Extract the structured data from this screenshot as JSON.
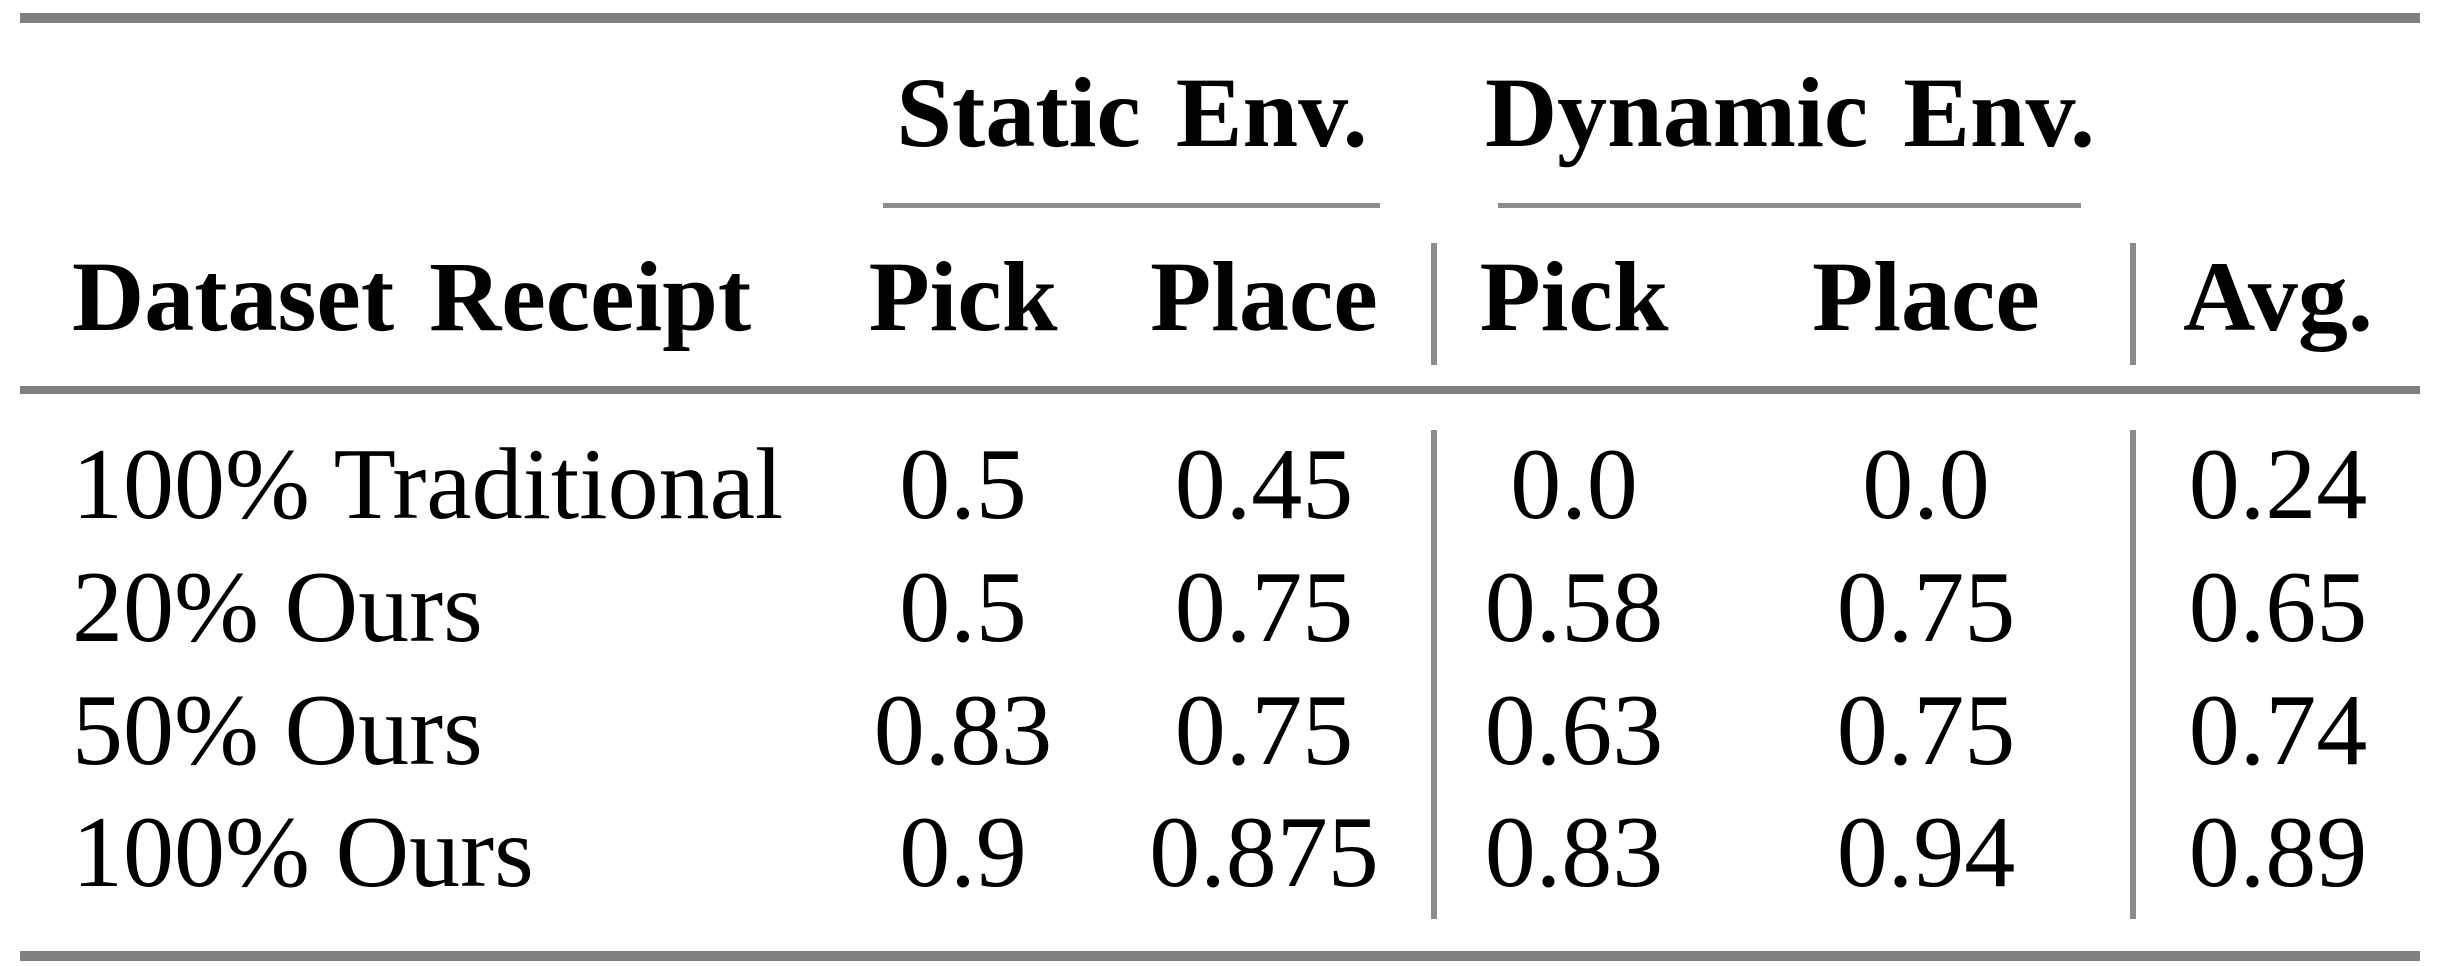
{
  "colors": {
    "rule_thick": "#808080",
    "rule_thin": "#8b8b8b",
    "text": "#000000",
    "background": "#ffffff"
  },
  "table": {
    "groups": {
      "static": "Static Env.",
      "dynamic": "Dynamic Env."
    },
    "headers": {
      "dataset": "Dataset Receipt",
      "static_pick": "Pick",
      "static_place": "Place",
      "dynamic_pick": "Pick",
      "dynamic_place": "Place",
      "avg": "Avg."
    },
    "rows": [
      {
        "label": "100% Traditional",
        "values": [
          "0.5",
          "0.45",
          "0.0",
          "0.0",
          "0.24"
        ]
      },
      {
        "label": "20% Ours",
        "values": [
          "0.5",
          "0.75",
          "0.58",
          "0.75",
          "0.65"
        ]
      },
      {
        "label": "50% Ours",
        "values": [
          "0.83",
          "0.75",
          "0.63",
          "0.75",
          "0.74"
        ]
      },
      {
        "label": "100% Ours",
        "values": [
          "0.9",
          "0.875",
          "0.83",
          "0.94",
          "0.89"
        ]
      }
    ]
  }
}
